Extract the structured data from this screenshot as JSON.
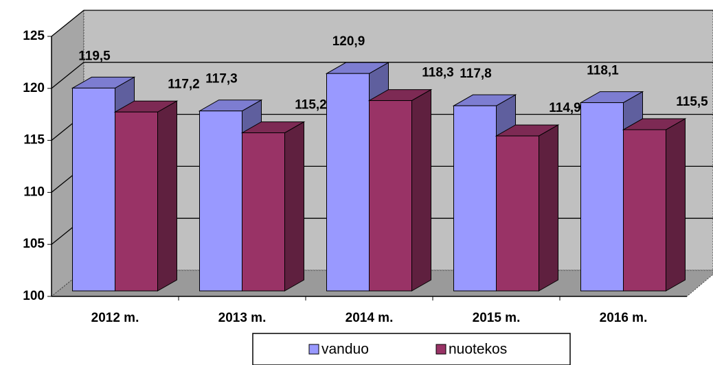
{
  "chart_data": {
    "type": "bar3d",
    "categories": [
      "2012 m.",
      "2013 m.",
      "2014 m.",
      "2015 m.",
      "2016 m."
    ],
    "series": [
      {
        "name": "vanduo",
        "color": "#9999ff",
        "values": [
          119.5,
          117.3,
          120.9,
          117.8,
          118.1
        ],
        "value_labels": [
          "119,5",
          "117,3",
          "120,9",
          "117,8",
          "118,1"
        ]
      },
      {
        "name": "nuotekos",
        "color": "#993366",
        "values": [
          117.2,
          115.2,
          118.3,
          114.9,
          115.5
        ],
        "value_labels": [
          "117,2",
          "115,2",
          "118,3",
          "114,9",
          "115,5"
        ]
      }
    ],
    "ylim": [
      100,
      125
    ],
    "yticks": [
      100,
      105,
      110,
      115,
      120,
      125
    ],
    "grid": true,
    "legend": "bottom"
  }
}
